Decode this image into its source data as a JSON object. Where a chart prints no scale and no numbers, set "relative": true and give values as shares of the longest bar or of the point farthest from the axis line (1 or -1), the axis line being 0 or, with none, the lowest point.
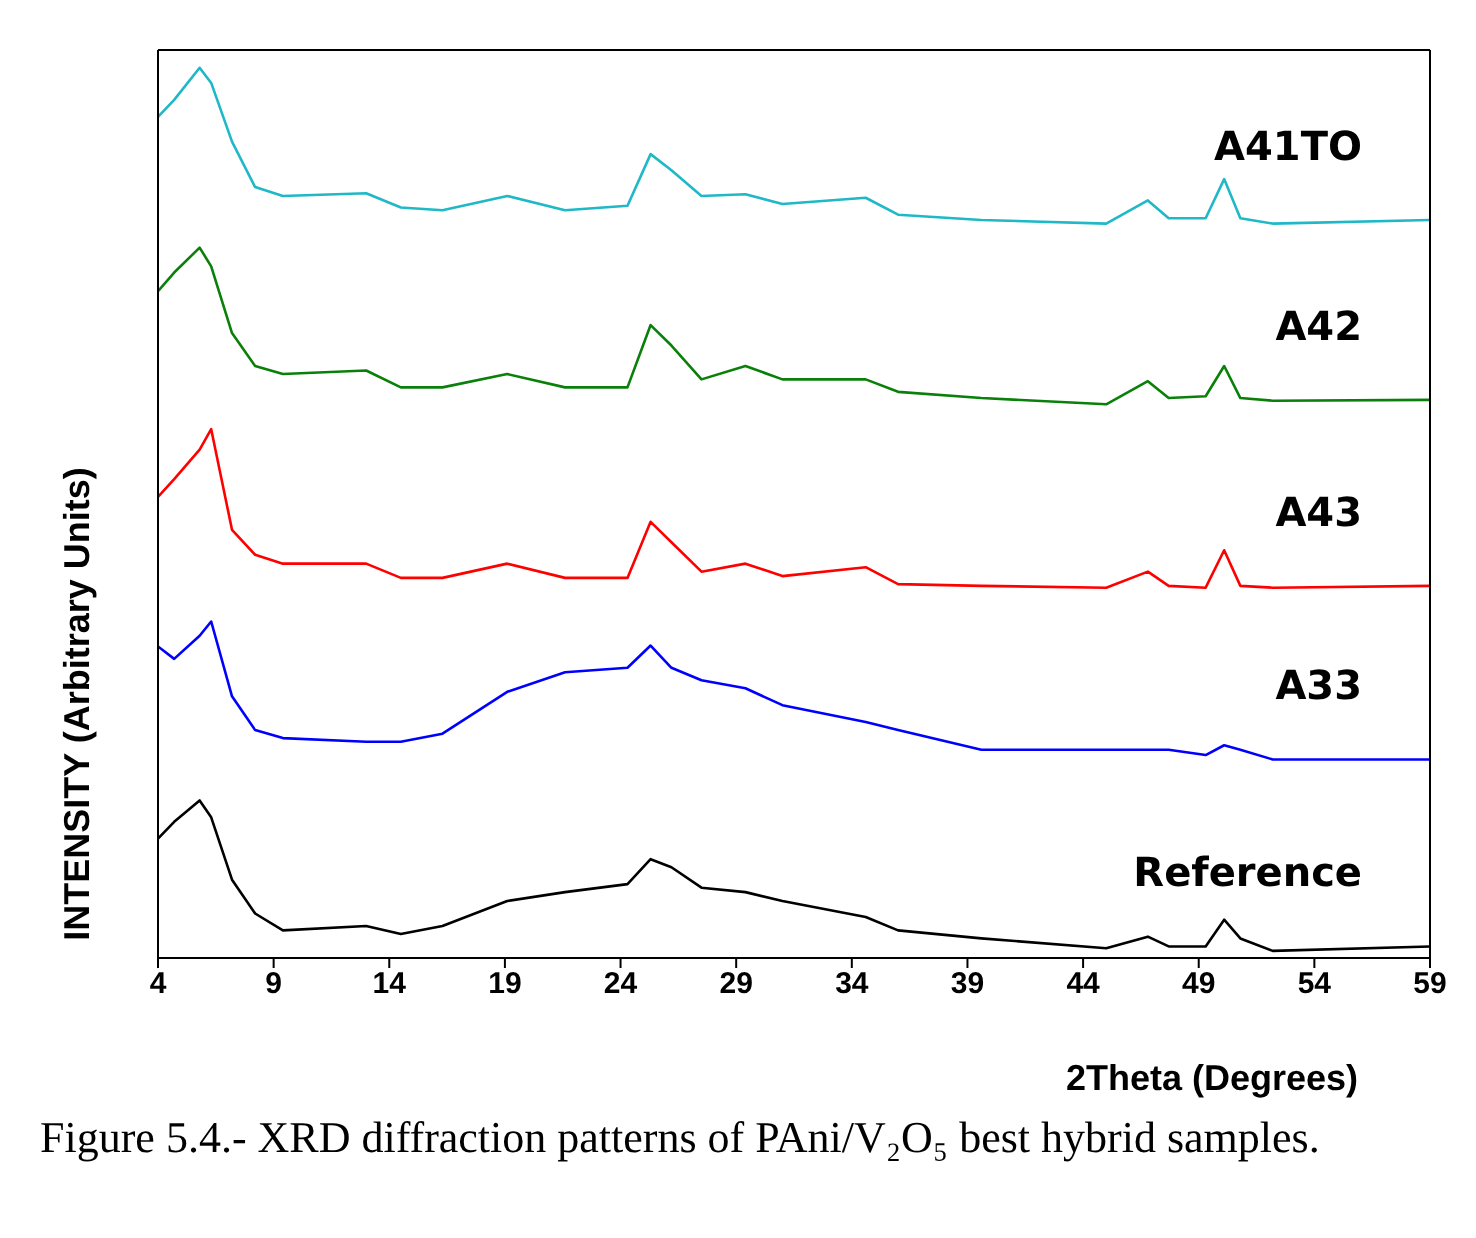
{
  "chart_data": {
    "type": "line",
    "title": "Figure 5.4.- XRD diffraction patterns of PAni/V₂O₅  best hybrid samples.",
    "xlabel": "2Theta (Degrees)",
    "ylabel": "INTENSITY (Arbitrary Units)",
    "relative": true,
    "xlim": [
      4,
      59
    ],
    "xticks": [
      4,
      9,
      14,
      19,
      24,
      29,
      34,
      39,
      44,
      49,
      54,
      59
    ],
    "x": [
      4,
      4.7,
      5.8,
      6.3,
      7.2,
      8.2,
      9.4,
      13,
      14.5,
      16.3,
      19.1,
      21.6,
      24.3,
      25.3,
      26.2,
      27.5,
      29.4,
      31,
      34.6,
      36,
      39.6,
      45,
      46.8,
      47.7,
      49.3,
      50.1,
      50.8,
      52.2,
      59
    ],
    "series": [
      {
        "name": "A41TO",
        "color": "#1fb8c6",
        "values": [
          0.945,
          0.964,
          1.0,
          0.983,
          0.917,
          0.866,
          0.856,
          0.859,
          0.843,
          0.84,
          0.856,
          0.84,
          0.845,
          0.903,
          0.885,
          0.856,
          0.858,
          0.847,
          0.854,
          0.835,
          0.829,
          0.825,
          0.851,
          0.831,
          0.831,
          0.875,
          0.831,
          0.825,
          0.829
        ]
      },
      {
        "name": "A42",
        "color": "#0a800a",
        "values": [
          0.749,
          0.77,
          0.798,
          0.777,
          0.702,
          0.665,
          0.656,
          0.66,
          0.641,
          0.641,
          0.656,
          0.641,
          0.641,
          0.711,
          0.688,
          0.65,
          0.665,
          0.65,
          0.65,
          0.636,
          0.629,
          0.622,
          0.648,
          0.629,
          0.631,
          0.665,
          0.629,
          0.626,
          0.627
        ]
      },
      {
        "name": "A43",
        "color": "#ff0000",
        "values": [
          0.518,
          0.538,
          0.571,
          0.594,
          0.481,
          0.453,
          0.443,
          0.443,
          0.427,
          0.427,
          0.443,
          0.427,
          0.427,
          0.49,
          0.467,
          0.434,
          0.443,
          0.429,
          0.439,
          0.42,
          0.418,
          0.416,
          0.434,
          0.418,
          0.416,
          0.458,
          0.418,
          0.416,
          0.418
        ]
      },
      {
        "name": "A33",
        "color": "#0000ff",
        "values": [
          0.35,
          0.336,
          0.362,
          0.378,
          0.294,
          0.256,
          0.247,
          0.243,
          0.243,
          0.252,
          0.299,
          0.321,
          0.326,
          0.351,
          0.326,
          0.312,
          0.303,
          0.284,
          0.265,
          0.256,
          0.234,
          0.234,
          0.234,
          0.234,
          0.228,
          0.239,
          0.234,
          0.223,
          0.223
        ]
      },
      {
        "name": "Reference",
        "color": "#000000",
        "values": [
          0.134,
          0.153,
          0.177,
          0.158,
          0.088,
          0.05,
          0.031,
          0.036,
          0.027,
          0.036,
          0.064,
          0.074,
          0.083,
          0.111,
          0.102,
          0.079,
          0.074,
          0.064,
          0.046,
          0.031,
          0.022,
          0.011,
          0.024,
          0.013,
          0.013,
          0.043,
          0.022,
          0.008,
          0.013
        ]
      }
    ]
  }
}
